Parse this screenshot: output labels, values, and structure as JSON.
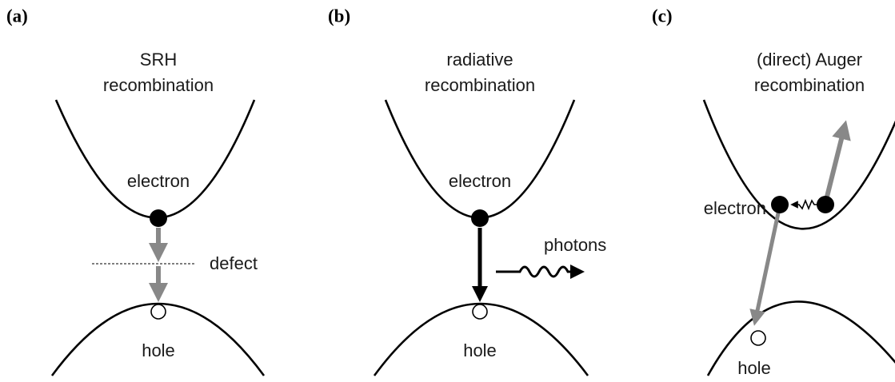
{
  "panels": [
    {
      "label": "(a)",
      "title": [
        "SRH",
        "recombination"
      ],
      "electron": "electron",
      "hole": "hole",
      "defect": "defect"
    },
    {
      "label": "(b)",
      "title": [
        "radiative",
        "recombination"
      ],
      "electron": "electron",
      "hole": "hole",
      "photons": "photons"
    },
    {
      "label": "(c)",
      "title": [
        "(direct) Auger",
        "recombination"
      ],
      "electron": "electron",
      "hole": "hole"
    }
  ]
}
